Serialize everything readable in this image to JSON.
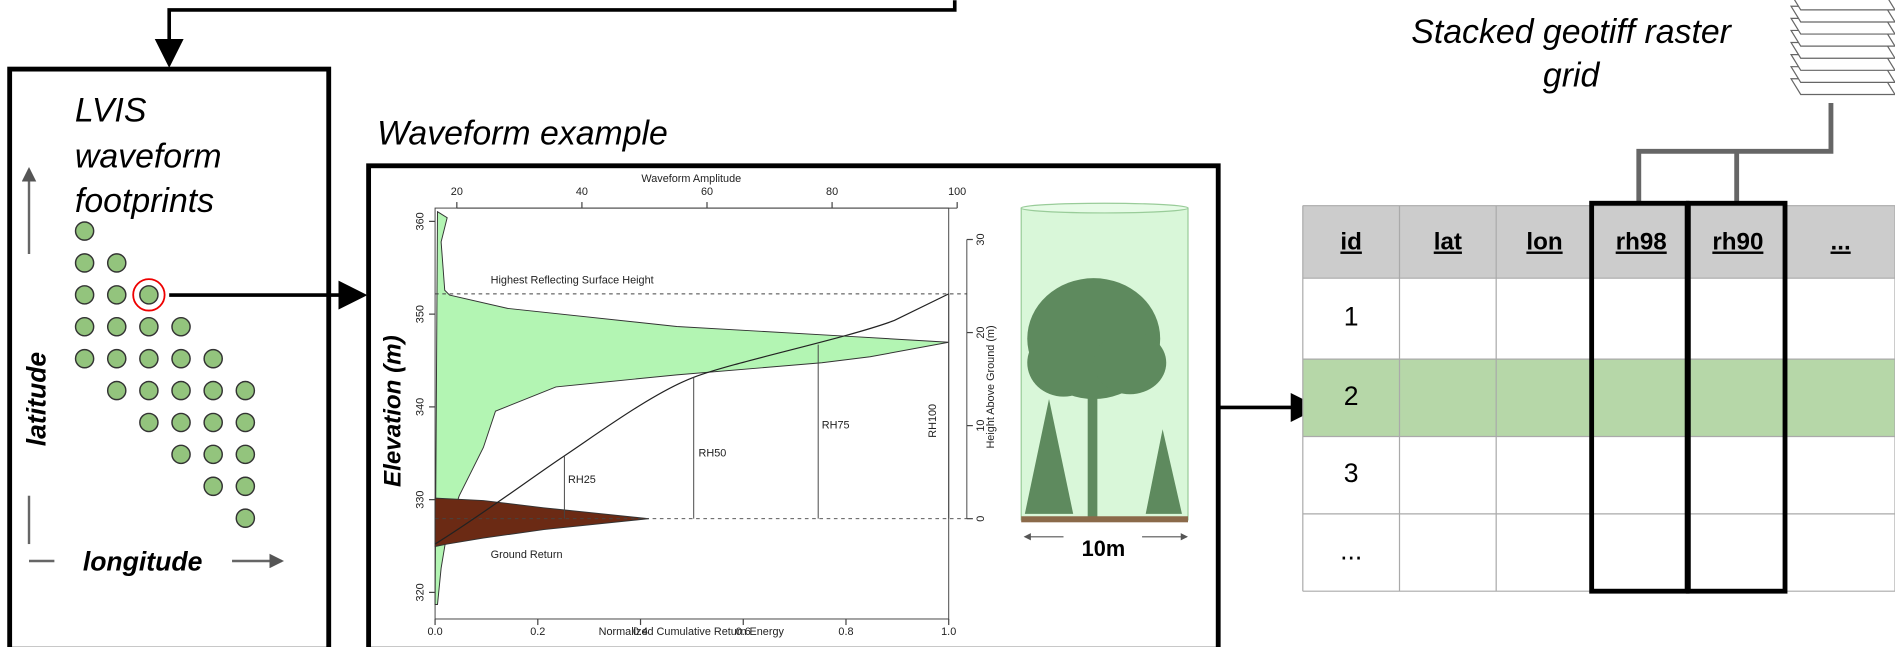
{
  "footprints": {
    "title_lines": [
      "LVIS",
      "waveform",
      "footprints"
    ],
    "y_axis_label": "latitude",
    "x_axis_label": "longitude"
  },
  "waveform": {
    "title": "Waveform example",
    "top_axis_label": "Waveform Amplitude",
    "top_ticks": [
      20,
      40,
      60,
      80,
      100
    ],
    "left_axis_label": "Elevation (m)",
    "left_ticks": [
      320,
      330,
      340,
      350,
      360
    ],
    "bottom_axis_label": "Normalized Cumulative Return Energy",
    "bottom_ticks": [
      "0.0",
      "0.2",
      "0.4",
      "0.6",
      "0.8",
      "1.0"
    ],
    "right_axis_label": "Height Above Ground (m)",
    "right_ticks": [
      0,
      10,
      20,
      30
    ],
    "annotations": {
      "top": "Highest Reflecting Surface Height",
      "ground": "Ground Return",
      "rh25": "RH25",
      "rh50": "RH50",
      "rh75": "RH75",
      "rh100": "RH100"
    },
    "scale_label": "10m"
  },
  "raster": {
    "title_lines": [
      "Stacked geotiff raster",
      "grid"
    ]
  },
  "table": {
    "columns": [
      "id",
      "lat",
      "lon",
      "rh98",
      "rh90",
      "..."
    ],
    "rows": [
      "1",
      "2",
      "3",
      "..."
    ]
  }
}
